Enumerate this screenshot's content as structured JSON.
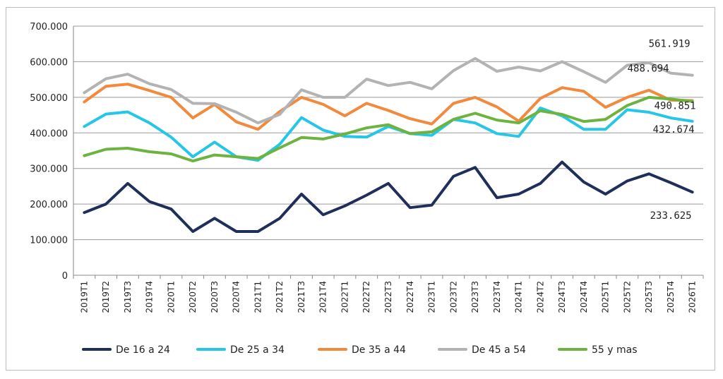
{
  "chart_data": {
    "type": "line",
    "categories": [
      "2019T1",
      "2019T2",
      "2019T3",
      "2019T4",
      "2020T1",
      "2020T2",
      "2020T3",
      "2020T4",
      "2021T1",
      "2021T2",
      "2021T3",
      "2021T4",
      "2022T1",
      "2022T2",
      "2022T3",
      "2022T4",
      "2023T1",
      "2023T2",
      "2023T3",
      "2023T4",
      "2024T1",
      "2024T2",
      "2024T3",
      "2024T4",
      "2025T1",
      "2025T2",
      "2025T3",
      "2025T4",
      "2026T1"
    ],
    "ylim": [
      0,
      700000
    ],
    "yticks": [
      0,
      100000,
      200000,
      300000,
      400000,
      500000,
      600000,
      700000
    ],
    "ytick_labels": [
      "0",
      "100.000",
      "200.000",
      "300.000",
      "400.000",
      "500.000",
      "600.000",
      "700.000"
    ],
    "grid": true,
    "legend_position": "bottom",
    "series": [
      {
        "name": "De 16 a 24",
        "color": "#1f2f5a",
        "values": [
          176000,
          200000,
          258000,
          207000,
          186000,
          123000,
          160000,
          123000,
          123000,
          160000,
          228000,
          170000,
          195000,
          225000,
          258000,
          190000,
          197000,
          278000,
          303000,
          218000,
          228000,
          258000,
          318000,
          262000,
          228000,
          265000,
          285000,
          260000,
          233625
        ]
      },
      {
        "name": "De 25 a 34",
        "color": "#26c6e6",
        "values": [
          418000,
          453000,
          459000,
          428000,
          388000,
          333000,
          374000,
          333000,
          323000,
          368000,
          443000,
          408000,
          390000,
          388000,
          418000,
          398000,
          393000,
          438000,
          428000,
          398000,
          390000,
          470000,
          448000,
          410000,
          410000,
          465000,
          458000,
          442000,
          432674
        ]
      },
      {
        "name": "De 35 a 44",
        "color": "#f28a3e",
        "values": [
          487000,
          531000,
          537000,
          519000,
          500000,
          442000,
          480000,
          431000,
          410000,
          460000,
          500000,
          480000,
          448000,
          483000,
          463000,
          440000,
          425000,
          483000,
          500000,
          473000,
          433000,
          497000,
          527000,
          517000,
          472000,
          500000,
          520000,
          492000,
          490851
        ]
      },
      {
        "name": "De 45 a 54",
        "color": "#b3b3b3",
        "values": [
          513000,
          552000,
          565000,
          538000,
          522000,
          483000,
          482000,
          458000,
          428000,
          452000,
          521000,
          500000,
          500000,
          551000,
          533000,
          542000,
          524000,
          575000,
          609000,
          573000,
          585000,
          574000,
          600000,
          572000,
          542000,
          590000,
          597000,
          568000,
          561919
        ]
      },
      {
        "name": "55 y mas",
        "color": "#6db33f",
        "values": [
          336000,
          354000,
          357000,
          347000,
          341000,
          321000,
          338000,
          333000,
          328000,
          358000,
          387000,
          383000,
          397000,
          414000,
          423000,
          398000,
          403000,
          438000,
          455000,
          436000,
          428000,
          462000,
          452000,
          432000,
          438000,
          477000,
          500000,
          495000,
          488694
        ]
      }
    ],
    "data_labels": [
      {
        "series": 0,
        "text": "233.625"
      },
      {
        "series": 1,
        "text": "432.674"
      },
      {
        "series": 2,
        "text": "490.851"
      },
      {
        "series": 3,
        "text": "561.919"
      },
      {
        "series": 4,
        "text": "488.694"
      }
    ]
  }
}
